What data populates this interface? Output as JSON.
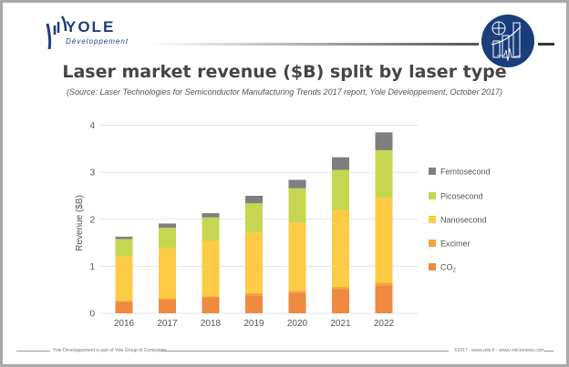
{
  "header": {
    "logo_name": "YOLE",
    "logo_sub": "Développement"
  },
  "footer": {
    "left": "Yole Développement is part of Yole Group of Companies",
    "right": "©2017 - www.yole.fr - www.i-micronews.com"
  },
  "colors": {
    "brand": "#1e3f7a",
    "co2": "#ef8a3f",
    "excimer": "#f4a63c",
    "nanosecond": "#fdcb45",
    "picosecond": "#c6d651",
    "femtosecond": "#7f7f7f"
  },
  "chart_data": {
    "type": "bar",
    "stacked": true,
    "title": "Laser market revenue ($B) split by laser type",
    "subtitle": "(Source: Laser Technologies for Semiconductor Manufacturing Trends 2017 report, Yole Développement, October 2017)",
    "xlabel": "",
    "ylabel": "Revenue ($B)",
    "ylim": [
      0,
      4
    ],
    "yticks": [
      "0",
      "1",
      "2",
      "3",
      "4"
    ],
    "grid": true,
    "legend_placement": "right",
    "categories": [
      "2016",
      "2017",
      "2018",
      "2019",
      "2020",
      "2021",
      "2022"
    ],
    "series": [
      {
        "name": "CO2",
        "label_main": "CO",
        "label_sub": "2",
        "color": "#ef8a3f",
        "values": [
          0.25,
          0.29,
          0.34,
          0.38,
          0.44,
          0.52,
          0.59
        ]
      },
      {
        "name": "Excimer",
        "color": "#f4a63c",
        "values": [
          0.01,
          0.03,
          0.02,
          0.05,
          0.04,
          0.04,
          0.06
        ]
      },
      {
        "name": "Nanosecond",
        "color": "#fdcb45",
        "values": [
          0.95,
          1.07,
          1.18,
          1.28,
          1.45,
          1.64,
          1.81
        ]
      },
      {
        "name": "Picosecond",
        "color": "#c6d651",
        "values": [
          0.37,
          0.43,
          0.5,
          0.63,
          0.73,
          0.85,
          1.01
        ]
      },
      {
        "name": "Femtosecond",
        "color": "#7f7f7f",
        "values": [
          0.05,
          0.09,
          0.09,
          0.16,
          0.18,
          0.27,
          0.38
        ]
      }
    ]
  }
}
